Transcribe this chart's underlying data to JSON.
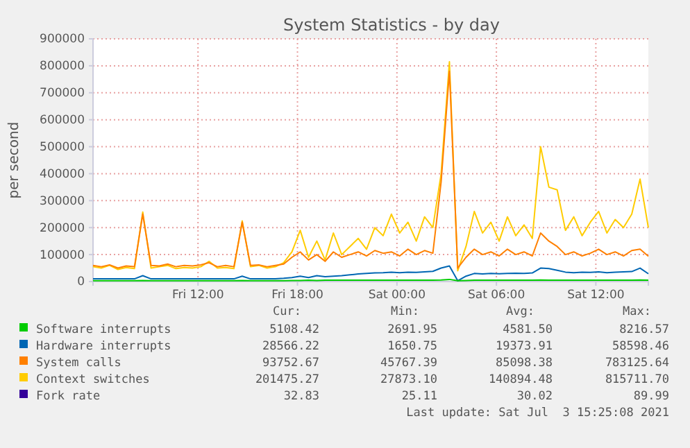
{
  "chart_data": {
    "type": "line",
    "title": "System Statistics - by day",
    "ylabel": "per second",
    "x": [
      "2021-07-02T05:40",
      "2021-07-02T06:10",
      "2021-07-02T06:40",
      "2021-07-02T07:10",
      "2021-07-02T07:40",
      "2021-07-02T08:10",
      "2021-07-02T08:40",
      "2021-07-02T09:10",
      "2021-07-02T09:40",
      "2021-07-02T10:10",
      "2021-07-02T10:40",
      "2021-07-02T11:10",
      "2021-07-02T11:40",
      "2021-07-02T12:10",
      "2021-07-02T12:40",
      "2021-07-02T13:10",
      "2021-07-02T13:40",
      "2021-07-02T14:10",
      "2021-07-02T14:40",
      "2021-07-02T15:10",
      "2021-07-02T15:40",
      "2021-07-02T16:10",
      "2021-07-02T16:40",
      "2021-07-02T17:10",
      "2021-07-02T17:40",
      "2021-07-02T18:10",
      "2021-07-02T18:40",
      "2021-07-02T19:10",
      "2021-07-02T19:40",
      "2021-07-02T20:10",
      "2021-07-02T20:40",
      "2021-07-02T21:10",
      "2021-07-02T21:40",
      "2021-07-02T22:10",
      "2021-07-02T22:40",
      "2021-07-02T23:10",
      "2021-07-02T23:40",
      "2021-07-03T00:10",
      "2021-07-03T00:40",
      "2021-07-03T01:10",
      "2021-07-03T01:40",
      "2021-07-03T02:10",
      "2021-07-03T02:40",
      "2021-07-03T03:10",
      "2021-07-03T03:40",
      "2021-07-03T04:10",
      "2021-07-03T04:40",
      "2021-07-03T05:10",
      "2021-07-03T05:40",
      "2021-07-03T06:10",
      "2021-07-03T06:40",
      "2021-07-03T07:10",
      "2021-07-03T07:40",
      "2021-07-03T08:10",
      "2021-07-03T08:40",
      "2021-07-03T09:10",
      "2021-07-03T09:40",
      "2021-07-03T10:10",
      "2021-07-03T10:40",
      "2021-07-03T11:10",
      "2021-07-03T11:40",
      "2021-07-03T12:10",
      "2021-07-03T12:40",
      "2021-07-03T13:10",
      "2021-07-03T13:40",
      "2021-07-03T14:10",
      "2021-07-03T14:40",
      "2021-07-03T15:10"
    ],
    "series": [
      {
        "name": "Software interrupts",
        "color": "#00cc00",
        "values": [
          3000,
          3000,
          3000,
          3000,
          3000,
          3000,
          4000,
          3000,
          3000,
          3000,
          3000,
          3000,
          3000,
          3000,
          3000,
          3000,
          3000,
          3000,
          4000,
          3000,
          3000,
          3000,
          3000,
          3000,
          4000,
          4000,
          5000,
          4000,
          5000,
          5000,
          5000,
          5000,
          5000,
          5000,
          5000,
          5000,
          5000,
          5000,
          5000,
          5000,
          5000,
          5000,
          6000,
          8000,
          3000,
          4000,
          5000,
          5000,
          5000,
          5000,
          5000,
          5000,
          5000,
          5000,
          6000,
          5000,
          5000,
          5000,
          5000,
          5000,
          5000,
          5000,
          5000,
          5000,
          5000,
          5000,
          6000,
          5000
        ]
      },
      {
        "name": "Hardware interrupts",
        "color": "#0066b3",
        "values": [
          10000,
          10000,
          10000,
          10000,
          10000,
          10000,
          22000,
          10000,
          10000,
          10000,
          10000,
          10000,
          10000,
          10000,
          10000,
          10000,
          10000,
          10000,
          20000,
          10000,
          10000,
          10000,
          10000,
          12000,
          15000,
          20000,
          15000,
          22000,
          18000,
          20000,
          22000,
          25000,
          28000,
          30000,
          32000,
          33000,
          35000,
          33000,
          35000,
          34000,
          36000,
          38000,
          50000,
          58000,
          3000,
          20000,
          30000,
          28000,
          30000,
          29000,
          30000,
          31000,
          30000,
          32000,
          50000,
          48000,
          42000,
          35000,
          33000,
          35000,
          34000,
          36000,
          33000,
          35000,
          36000,
          37000,
          50000,
          29000
        ]
      },
      {
        "name": "System calls",
        "color": "#ff8000",
        "values": [
          60000,
          55000,
          62000,
          50000,
          58000,
          55000,
          250000,
          60000,
          58000,
          65000,
          55000,
          60000,
          58000,
          62000,
          70000,
          55000,
          60000,
          55000,
          220000,
          60000,
          62000,
          55000,
          60000,
          65000,
          90000,
          110000,
          80000,
          100000,
          75000,
          110000,
          90000,
          100000,
          110000,
          95000,
          115000,
          105000,
          110000,
          95000,
          120000,
          100000,
          115000,
          105000,
          370000,
          780000,
          50000,
          90000,
          120000,
          100000,
          110000,
          95000,
          120000,
          100000,
          110000,
          95000,
          180000,
          150000,
          130000,
          100000,
          110000,
          95000,
          105000,
          120000,
          100000,
          110000,
          95000,
          115000,
          120000,
          94000
        ]
      },
      {
        "name": "Context switches",
        "color": "#ffcc00",
        "values": [
          55000,
          50000,
          60000,
          45000,
          52000,
          48000,
          258000,
          50000,
          55000,
          60000,
          48000,
          52000,
          50000,
          55000,
          75000,
          50000,
          52000,
          48000,
          225000,
          55000,
          60000,
          50000,
          55000,
          70000,
          110000,
          190000,
          90000,
          150000,
          80000,
          180000,
          100000,
          130000,
          160000,
          120000,
          200000,
          170000,
          250000,
          180000,
          220000,
          150000,
          240000,
          200000,
          400000,
          815000,
          40000,
          130000,
          260000,
          180000,
          220000,
          150000,
          240000,
          170000,
          210000,
          160000,
          500000,
          350000,
          340000,
          190000,
          240000,
          170000,
          220000,
          260000,
          180000,
          230000,
          200000,
          250000,
          380000,
          200000
        ]
      },
      {
        "name": "Fork rate",
        "color": "#330099",
        "values": [
          null,
          null,
          null,
          null,
          null,
          null,
          null,
          null,
          null,
          null,
          null,
          null,
          null,
          null,
          null,
          null,
          null,
          null,
          null,
          null,
          null,
          null,
          null,
          null,
          null,
          null,
          null,
          null,
          null,
          null,
          null,
          null,
          null,
          null,
          null,
          null,
          null,
          null,
          null,
          null,
          null,
          null,
          null,
          null,
          null,
          null,
          null,
          null,
          null,
          null,
          null,
          null,
          null,
          null,
          null,
          null,
          null,
          null,
          null,
          null,
          null,
          null,
          null,
          null,
          null,
          null,
          null,
          null
        ]
      }
    ],
    "xlim": [
      "2021-07-02T05:40",
      "2021-07-03T15:10"
    ],
    "xticks": [
      {
        "value": "2021-07-02T12:00",
        "label": "Fri 12:00"
      },
      {
        "value": "2021-07-02T18:00",
        "label": "Fri 18:00"
      },
      {
        "value": "2021-07-03T00:00",
        "label": "Sat 00:00"
      },
      {
        "value": "2021-07-03T06:00",
        "label": "Sat 06:00"
      },
      {
        "value": "2021-07-03T12:00",
        "label": "Sat 12:00"
      }
    ],
    "ylim": [
      0,
      900000
    ],
    "yticks": [
      0,
      100000,
      200000,
      300000,
      400000,
      500000,
      600000,
      700000,
      800000,
      900000
    ],
    "grid": true,
    "legend": "bottom",
    "annotations": [
      "Cur:",
      "Min:",
      "Avg:",
      "Max:",
      "5108.42",
      "2691.95",
      "4581.50",
      "8216.57",
      "28566.22",
      "1650.75",
      "19373.91",
      "58598.46",
      "93752.67",
      "45767.39",
      "85098.38",
      "783125.64",
      "201475.27",
      "27873.10",
      "140894.48",
      "815711.70",
      "32.83",
      "25.11",
      "30.02",
      "89.99",
      "Last update: Sat Jul  3 15:25:08 2021"
    ]
  }
}
